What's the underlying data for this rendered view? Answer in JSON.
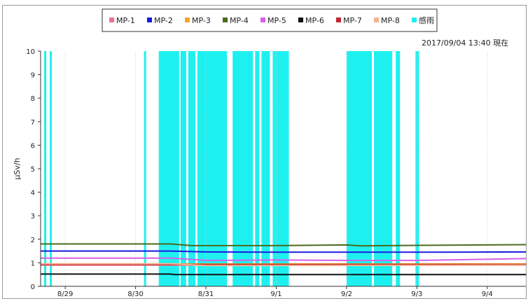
{
  "page": {
    "top_text": "",
    "timestamp": "2017/09/04 13:40 現在"
  },
  "chart_data": {
    "type": "line",
    "title": "",
    "xlabel": "",
    "ylabel": "μSv/h",
    "ylim": [
      0,
      10
    ],
    "yticks": [
      0,
      1,
      2,
      3,
      4,
      5,
      6,
      7,
      8,
      9,
      10
    ],
    "xlim": [
      -0.35,
      6.55
    ],
    "xticks": [
      {
        "label": "8/29",
        "x": 0
      },
      {
        "label": "8/30",
        "x": 1
      },
      {
        "label": "8/31",
        "x": 2
      },
      {
        "label": "9/1",
        "x": 3
      },
      {
        "label": "9/2",
        "x": 4
      },
      {
        "label": "9/3",
        "x": 5
      },
      {
        "label": "9/4",
        "x": 6
      }
    ],
    "legend_position": "top-center",
    "series": [
      {
        "name": "MP-1",
        "color": "#f0708c",
        "x": [
          -0.35,
          6.55
        ],
        "values": [
          0.9,
          0.9
        ]
      },
      {
        "name": "MP-2",
        "color": "#1a1adc",
        "x": [
          -0.35,
          1.5,
          2.0,
          3.0,
          4.0,
          5.0,
          6.55
        ],
        "values": [
          1.5,
          1.5,
          1.46,
          1.45,
          1.45,
          1.45,
          1.46
        ]
      },
      {
        "name": "MP-3",
        "color": "#f5a623",
        "x": [
          -0.35,
          6.55
        ],
        "values": [
          0.95,
          0.95
        ]
      },
      {
        "name": "MP-4",
        "color": "#4b6b1e",
        "x": [
          -0.35,
          1.5,
          1.8,
          3.0,
          4.0,
          4.2,
          5.0,
          6.55
        ],
        "values": [
          1.8,
          1.8,
          1.73,
          1.73,
          1.76,
          1.72,
          1.74,
          1.77
        ]
      },
      {
        "name": "MP-5",
        "color": "#d560e8",
        "x": [
          -0.35,
          1.5,
          2.0,
          3.0,
          4.0,
          5.0,
          6.55
        ],
        "values": [
          1.2,
          1.2,
          1.1,
          1.12,
          1.1,
          1.1,
          1.18
        ]
      },
      {
        "name": "MP-6",
        "color": "#111111",
        "x": [
          -0.35,
          1.5,
          1.55,
          6.55
        ],
        "values": [
          0.52,
          0.52,
          0.5,
          0.5
        ]
      },
      {
        "name": "MP-7",
        "color": "#c0282d",
        "x": [
          -0.35,
          6.55
        ],
        "values": [
          0.93,
          0.93
        ]
      },
      {
        "name": "MP-8",
        "color": "#f2b58c",
        "x": [
          -0.35,
          1.5,
          2.0,
          6.55
        ],
        "values": [
          0.96,
          0.96,
          0.88,
          0.9
        ]
      }
    ],
    "rain": {
      "name": "感雨",
      "color": "#1ef0f0",
      "intervals": [
        [
          -0.3,
          -0.27
        ],
        [
          -0.22,
          -0.19
        ],
        [
          1.12,
          1.15
        ],
        [
          1.33,
          1.62
        ],
        [
          1.64,
          1.72
        ],
        [
          1.75,
          1.85
        ],
        [
          1.88,
          2.3
        ],
        [
          2.38,
          2.67
        ],
        [
          2.7,
          2.76
        ],
        [
          2.79,
          2.91
        ],
        [
          2.95,
          3.18
        ],
        [
          4.0,
          4.36
        ],
        [
          4.39,
          4.65
        ],
        [
          4.7,
          4.76
        ],
        [
          4.98,
          5.03
        ]
      ]
    }
  }
}
